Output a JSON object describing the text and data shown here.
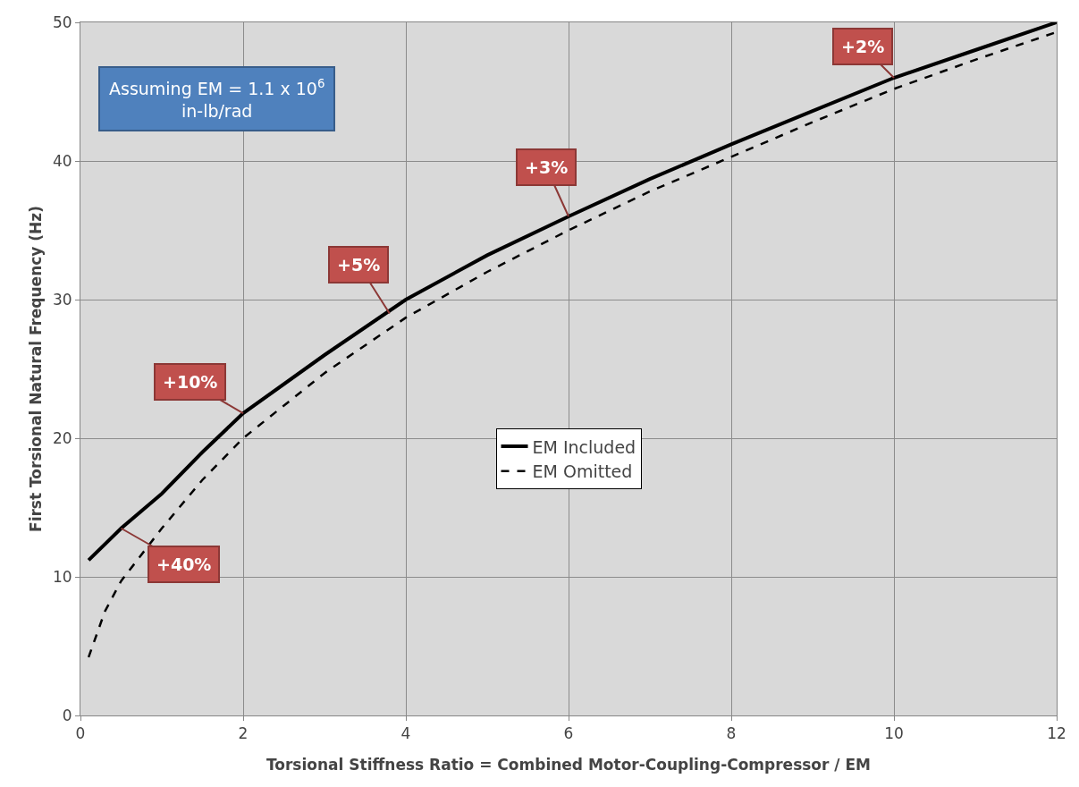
{
  "chart_data": {
    "type": "line",
    "xlabel": "Torsional Stiffness Ratio = Combined Motor-Coupling-Compressor / EM",
    "ylabel": "First Torsional Natural Frequency (Hz)",
    "xlim": [
      0,
      12
    ],
    "xticks": [
      0,
      2,
      4,
      6,
      8,
      10,
      12
    ],
    "ylim": [
      0,
      50
    ],
    "yticks": [
      0,
      10,
      20,
      30,
      40,
      50
    ],
    "grid": true,
    "legend": "center",
    "marker": "none",
    "series": [
      {
        "name": "EM Included",
        "color": "#000000",
        "line_style": "solid",
        "x": [
          0.1,
          0.5,
          1,
          1.5,
          2,
          3,
          4,
          5,
          6,
          7,
          8,
          9,
          10,
          11,
          12
        ],
        "values": [
          11.2,
          13.5,
          16,
          19,
          21.8,
          26,
          30,
          33.2,
          36,
          38.7,
          41.2,
          43.6,
          46,
          48,
          50
        ]
      },
      {
        "name": "EM Omitted",
        "color": "#000000",
        "line_style": "dashed",
        "x": [
          0.1,
          0.3,
          0.5,
          1,
          1.5,
          2,
          3,
          4,
          5,
          6,
          7,
          8,
          9,
          10,
          11,
          12
        ],
        "values": [
          4.2,
          7.5,
          9.7,
          13.5,
          17,
          20,
          24.7,
          28.7,
          32,
          35,
          37.8,
          40.3,
          42.8,
          45.2,
          47.3,
          49.3
        ]
      }
    ],
    "annotations": [
      "Assuming EM = 1.1 x 10$^{6}$ in-lb/rad",
      {
        "text": "+40%",
        "x": 0.5,
        "y": 13.5
      },
      {
        "text": "+10%",
        "x": 2,
        "y": 21.8
      },
      {
        "text": "+5%",
        "x": 3.8,
        "y": 29
      },
      {
        "text": "+3%",
        "x": 6,
        "y": 36
      },
      {
        "text": "+2%",
        "x": 10,
        "y": 46
      }
    ]
  }
}
